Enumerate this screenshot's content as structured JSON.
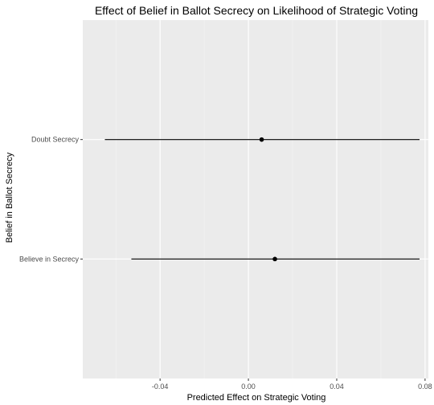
{
  "chart_data": {
    "type": "scatter",
    "title": "Effect of Belief in Ballot Secrecy on Likelihood of Strategic Voting",
    "xlabel": "Predicted Effect on Strategic Voting",
    "ylabel": "Belief in Ballot Secrecy",
    "xlim": [
      -0.075,
      0.0815
    ],
    "x_ticks": [
      -0.04,
      0.0,
      0.04,
      0.08
    ],
    "x_tick_labels": [
      "-0.04",
      "0.00",
      "0.04",
      "0.08"
    ],
    "categories": [
      "Doubt Secrecy",
      "Believe in Secrecy"
    ],
    "estimates": [
      0.006,
      0.012
    ],
    "ci_lower": [
      -0.065,
      -0.053
    ],
    "ci_upper": [
      0.0775,
      0.0775
    ],
    "grid": true,
    "colors": {
      "panel": "#ebebeb",
      "grid_major": "#ffffff",
      "grid_minor": "#f5f5f5",
      "point": "#000000",
      "line": "#000000"
    }
  }
}
